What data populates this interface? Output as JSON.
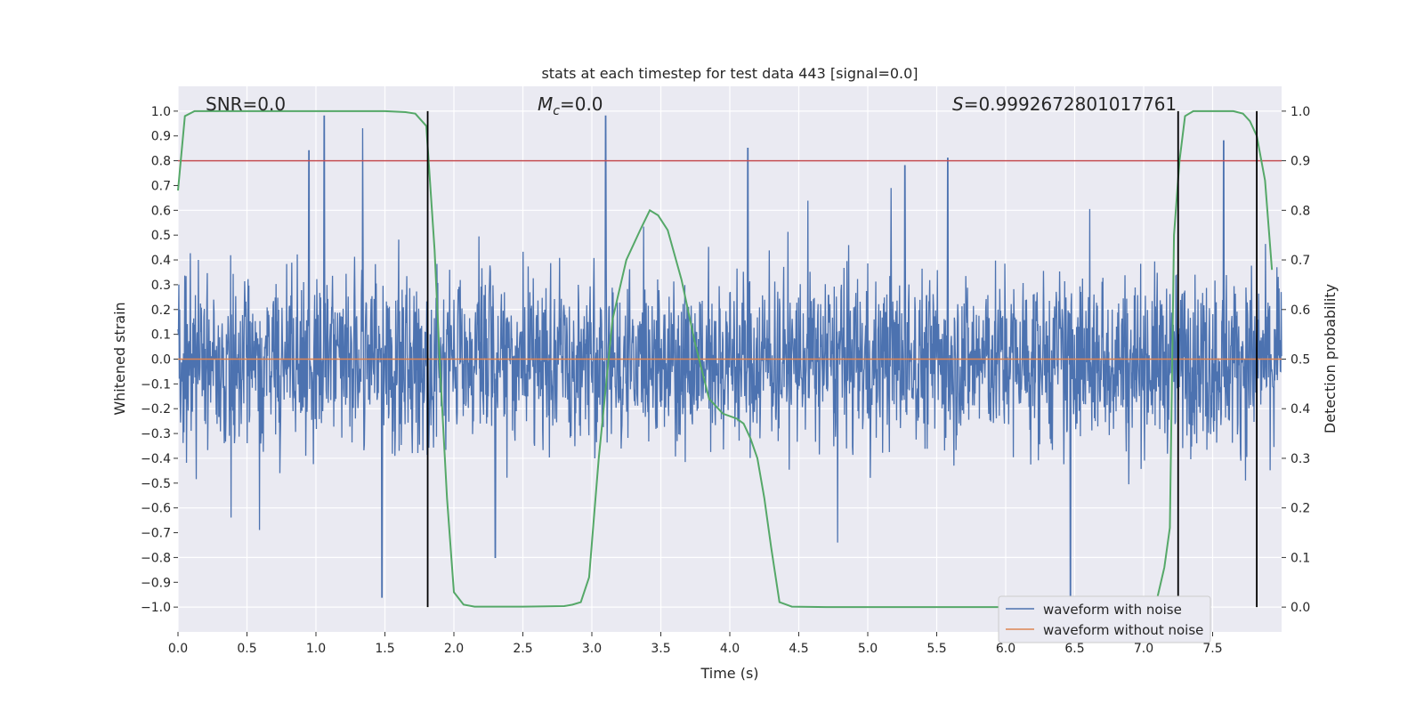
{
  "chart_data": {
    "type": "line",
    "title": "stats at each timestep for test data 443 [signal=0.0]",
    "xlabel": "Time (s)",
    "ylabel": "Whitened strain",
    "y2label": "Detection probability",
    "xlim": [
      0.0,
      8.0
    ],
    "ylim": [
      -1.1,
      1.1
    ],
    "y2lim": [
      -0.05,
      1.05
    ],
    "x_ticks": [
      0.0,
      0.5,
      1.0,
      1.5,
      2.0,
      2.5,
      3.0,
      3.5,
      4.0,
      4.5,
      5.0,
      5.5,
      6.0,
      6.5,
      7.0,
      7.5
    ],
    "x_tick_labels": [
      "0.0",
      "0.5",
      "1.0",
      "1.5",
      "2.0",
      "2.5",
      "3.0",
      "3.5",
      "4.0",
      "4.5",
      "5.0",
      "5.5",
      "6.0",
      "6.5",
      "7.0",
      "7.5"
    ],
    "y_ticks": [
      1.0,
      0.9,
      0.8,
      0.7,
      0.6,
      0.5,
      0.4,
      0.3,
      0.2,
      0.1,
      0.0,
      -0.1,
      -0.2,
      -0.3,
      -0.4,
      -0.5,
      -0.6,
      -0.7,
      -0.8,
      -0.9,
      -1.0
    ],
    "y_tick_labels": [
      "1.0",
      "0.9",
      "0.8",
      "0.7",
      "0.6",
      "0.5",
      "0.4",
      "0.3",
      "0.2",
      "0.1",
      "0.0",
      "−0.1",
      "−0.2",
      "−0.3",
      "−0.4",
      "−0.5",
      "−0.6",
      "−0.7",
      "−0.8",
      "−0.9",
      "−1.0"
    ],
    "y2_ticks": [
      1.0,
      0.9,
      0.8,
      0.7,
      0.6,
      0.5,
      0.4,
      0.3,
      0.2,
      0.1,
      0.0
    ],
    "y2_tick_labels": [
      "1.0",
      "0.9",
      "0.8",
      "0.7",
      "0.6",
      "0.5",
      "0.4",
      "0.3",
      "0.2",
      "0.1",
      "0.0"
    ],
    "grid": true,
    "annotations": {
      "snr": "SNR=0.0",
      "mc_symbol": "M",
      "mc_subscript": "c",
      "mc_value": "=0.0",
      "s_symbol": "S",
      "s_value": "=0.9992672801017761"
    },
    "threshold": 0.9,
    "vertical_lines_x": [
      1.81,
      7.25,
      7.82
    ],
    "series": [
      {
        "name": "waveform with noise",
        "color": "#4c72b0",
        "description": "whitened noisy strain, approx. ±0.4 band with peaks to ±1.0",
        "peaks": [
          {
            "x": 0.95,
            "y": 0.84
          },
          {
            "x": 1.06,
            "y": 0.98
          },
          {
            "x": 1.48,
            "y": -0.96
          },
          {
            "x": 2.3,
            "y": -0.8
          },
          {
            "x": 3.1,
            "y": 0.98
          },
          {
            "x": 4.13,
            "y": 0.85
          },
          {
            "x": 5.27,
            "y": 0.78
          },
          {
            "x": 5.58,
            "y": 0.81
          },
          {
            "x": 6.47,
            "y": -0.98
          },
          {
            "x": 7.58,
            "y": 0.88
          }
        ]
      },
      {
        "name": "waveform without noise",
        "color": "#dd8452",
        "x": [
          0.0,
          8.0
        ],
        "y": [
          0.0,
          0.0
        ]
      },
      {
        "name": "detection probability",
        "axis": "right",
        "color": "#55a868",
        "x": [
          0.0,
          0.05,
          0.12,
          0.3,
          1.0,
          1.5,
          1.65,
          1.72,
          1.8,
          1.86,
          1.9,
          1.95,
          2.0,
          2.07,
          2.15,
          2.5,
          2.8,
          2.86,
          2.92,
          2.98,
          3.05,
          3.15,
          3.25,
          3.35,
          3.42,
          3.48,
          3.55,
          3.65,
          3.75,
          3.85,
          3.95,
          4.05,
          4.1,
          4.15,
          4.2,
          4.25,
          4.3,
          4.36,
          4.45,
          4.7,
          5.5,
          6.5,
          7.0,
          7.1,
          7.15,
          7.19,
          7.22,
          7.26,
          7.3,
          7.36,
          7.5,
          7.65,
          7.72,
          7.77,
          7.82,
          7.88,
          7.93
        ],
        "y": [
          0.84,
          0.99,
          1.0,
          1.0,
          1.0,
          1.0,
          0.998,
          0.995,
          0.97,
          0.72,
          0.48,
          0.22,
          0.03,
          0.005,
          0.001,
          0.001,
          0.002,
          0.005,
          0.01,
          0.06,
          0.3,
          0.58,
          0.7,
          0.76,
          0.8,
          0.79,
          0.76,
          0.66,
          0.53,
          0.42,
          0.39,
          0.38,
          0.37,
          0.34,
          0.3,
          0.22,
          0.12,
          0.01,
          0.001,
          0.0,
          0.0,
          0.0,
          0.0,
          0.02,
          0.08,
          0.16,
          0.75,
          0.9,
          0.99,
          1.0,
          1.0,
          1.0,
          0.995,
          0.98,
          0.95,
          0.86,
          0.68
        ]
      }
    ],
    "threshold_color": "#c44e52",
    "legend": {
      "position": "bottom-right",
      "entries": [
        "waveform with noise",
        "waveform without noise"
      ]
    }
  }
}
